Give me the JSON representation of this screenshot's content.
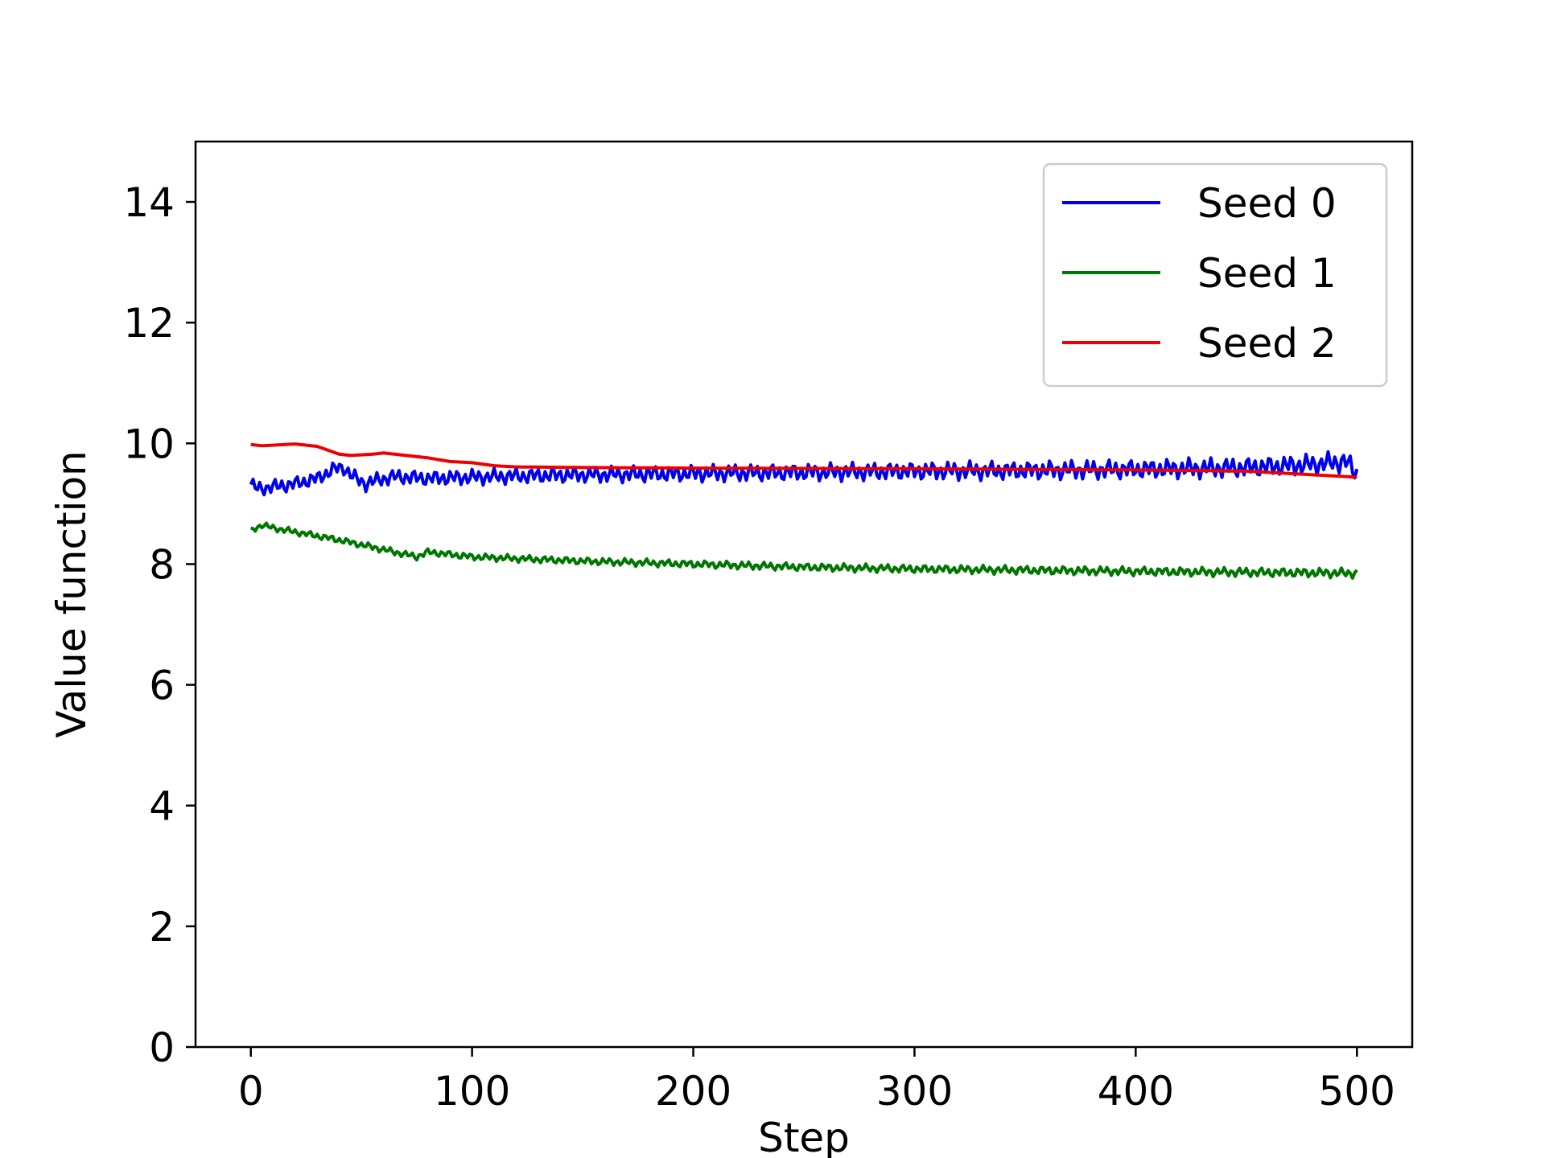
{
  "chart_data": {
    "type": "line",
    "title": "",
    "xlabel": "Step",
    "ylabel": "Value function",
    "xlim": [
      -25,
      525
    ],
    "ylim": [
      0,
      15
    ],
    "xticks": [
      0,
      100,
      200,
      300,
      400,
      500
    ],
    "yticks": [
      0,
      2,
      4,
      6,
      8,
      10,
      12,
      14
    ],
    "grid": false,
    "legend": {
      "placement": "top-right"
    },
    "series": [
      {
        "name": "Seed 0",
        "color": "#0000ee",
        "noise": 0.09,
        "x": [
          0,
          3,
          10,
          20,
          30,
          38,
          42,
          46,
          52,
          58,
          65,
          80,
          100,
          120,
          150,
          200,
          250,
          300,
          350,
          400,
          450,
          480,
          495,
          500
        ],
        "values": [
          9.32,
          9.25,
          9.28,
          9.33,
          9.42,
          9.58,
          9.6,
          9.45,
          9.33,
          9.4,
          9.45,
          9.42,
          9.44,
          9.46,
          9.48,
          9.5,
          9.52,
          9.54,
          9.55,
          9.57,
          9.6,
          9.65,
          9.7,
          9.5
        ]
      },
      {
        "name": "Seed 1",
        "color": "#007700",
        "noise": 0.04,
        "x": [
          0,
          5,
          10,
          40,
          75,
          80,
          100,
          150,
          200,
          250,
          300,
          400,
          500
        ],
        "values": [
          8.55,
          8.65,
          8.6,
          8.4,
          8.12,
          8.2,
          8.12,
          8.05,
          8.0,
          7.95,
          7.92,
          7.88,
          7.85
        ]
      },
      {
        "name": "Seed 2",
        "color": "#ee0000",
        "noise": 0.0,
        "x": [
          0,
          5,
          20,
          30,
          40,
          45,
          55,
          60,
          70,
          80,
          90,
          100,
          110,
          120,
          150,
          200,
          300,
          350,
          400,
          450,
          500
        ],
        "values": [
          9.98,
          9.96,
          9.99,
          9.95,
          9.82,
          9.8,
          9.82,
          9.84,
          9.8,
          9.76,
          9.7,
          9.68,
          9.63,
          9.61,
          9.6,
          9.59,
          9.58,
          9.57,
          9.56,
          9.54,
          9.44
        ]
      }
    ]
  }
}
